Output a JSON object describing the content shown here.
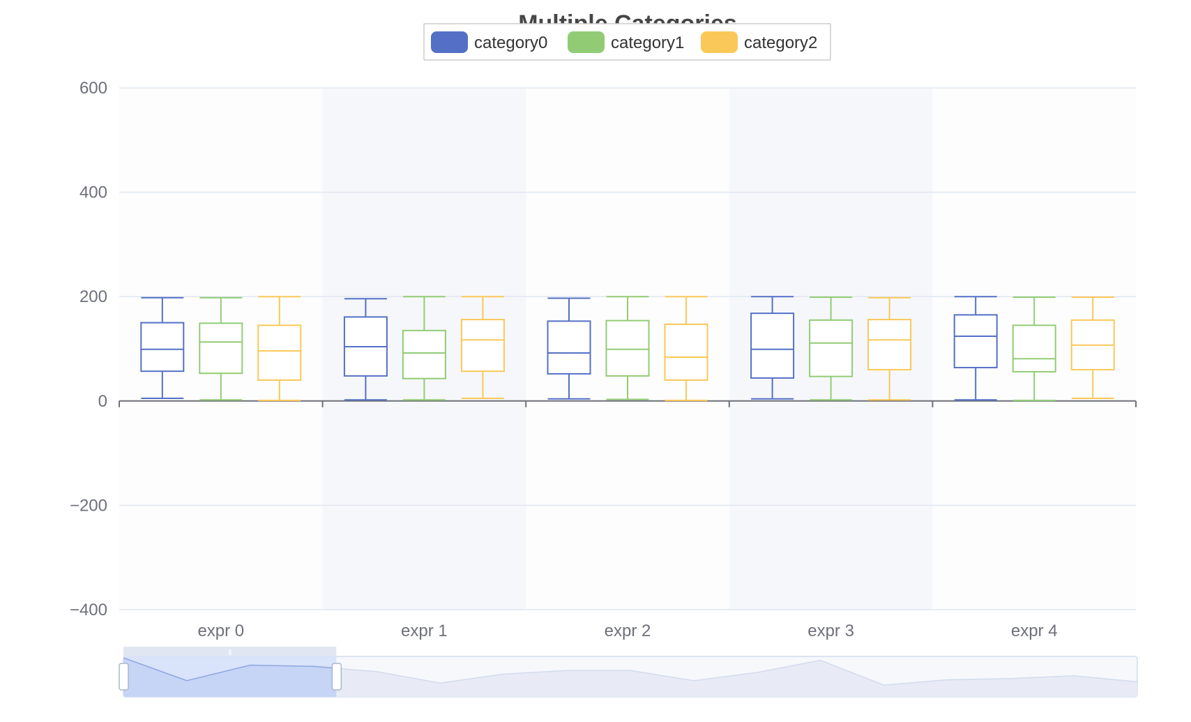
{
  "chart_data": {
    "type": "boxplot",
    "title": "Multiple Categories",
    "categories": [
      "expr 0",
      "expr 1",
      "expr 2",
      "expr 3",
      "expr 4"
    ],
    "y_ticks": [
      "600",
      "400",
      "200",
      "0",
      "−200",
      "−400"
    ],
    "y_tick_values": [
      600,
      400,
      200,
      0,
      -200,
      -400
    ],
    "ylim": [
      -400,
      600
    ],
    "grid": true,
    "legend_position": "top-center",
    "series": [
      {
        "name": "category0",
        "color": "#5470c6",
        "boxes": [
          {
            "min": 5,
            "q1": 57,
            "median": 99,
            "q3": 150,
            "max": 198
          },
          {
            "min": 2,
            "q1": 48,
            "median": 104,
            "q3": 161,
            "max": 196
          },
          {
            "min": 4,
            "q1": 52,
            "median": 92,
            "q3": 153,
            "max": 197
          },
          {
            "min": 4,
            "q1": 44,
            "median": 99,
            "q3": 168,
            "max": 200
          },
          {
            "min": 2,
            "q1": 64,
            "median": 124,
            "q3": 165,
            "max": 200
          }
        ]
      },
      {
        "name": "category1",
        "color": "#91cc75",
        "boxes": [
          {
            "min": 2,
            "q1": 53,
            "median": 113,
            "q3": 149,
            "max": 198
          },
          {
            "min": 2,
            "q1": 43,
            "median": 92,
            "q3": 135,
            "max": 200
          },
          {
            "min": 3,
            "q1": 48,
            "median": 99,
            "q3": 154,
            "max": 200
          },
          {
            "min": 2,
            "q1": 47,
            "median": 111,
            "q3": 155,
            "max": 199
          },
          {
            "min": 1,
            "q1": 56,
            "median": 81,
            "q3": 145,
            "max": 199
          }
        ]
      },
      {
        "name": "category2",
        "color": "#fac858",
        "boxes": [
          {
            "min": 1,
            "q1": 40,
            "median": 96,
            "q3": 145,
            "max": 200
          },
          {
            "min": 5,
            "q1": 57,
            "median": 117,
            "q3": 156,
            "max": 200
          },
          {
            "min": 1,
            "q1": 40,
            "median": 84,
            "q3": 147,
            "max": 200
          },
          {
            "min": 2,
            "q1": 60,
            "median": 117,
            "q3": 156,
            "max": 198
          },
          {
            "min": 5,
            "q1": 60,
            "median": 107,
            "q3": 155,
            "max": 199
          }
        ]
      }
    ],
    "zoom": {
      "start_percent": 0,
      "end_percent": 21,
      "handle_glyph": "Ⅱ",
      "overview_values": [
        96,
        40,
        78,
        75,
        62,
        34,
        56,
        65,
        65,
        40,
        60,
        90,
        29,
        42,
        45,
        52,
        37
      ]
    }
  }
}
